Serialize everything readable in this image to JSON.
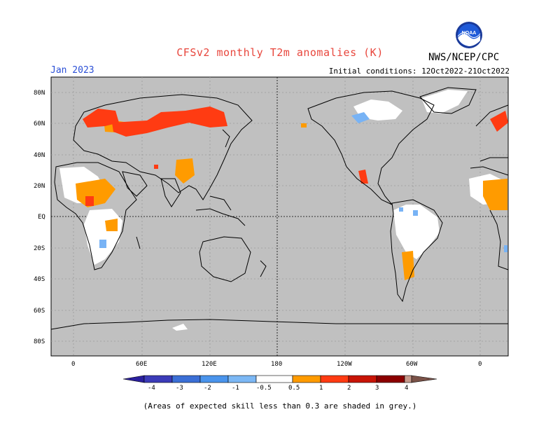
{
  "header": {
    "title": "CFSv2 monthly T2m anomalies (K)",
    "lead_month": "Jan 2023",
    "initial_conditions": "Initial conditions: 12Oct2022-21Oct2022",
    "org": "NWS/NCEP/CPC",
    "logo_text": "NOAA"
  },
  "map": {
    "lat_labels": [
      "80N",
      "60N",
      "40N",
      "20N",
      "EQ",
      "20S",
      "40S",
      "60S",
      "80S"
    ],
    "lon_labels": [
      "0",
      "60E",
      "120E",
      "180",
      "120W",
      "60W",
      "0"
    ]
  },
  "colorbar": {
    "ticks": [
      "-4",
      "-3",
      "-2",
      "-1",
      "-0.5",
      "0.5",
      "1",
      "2",
      "3",
      "4"
    ],
    "colors": [
      "#2a1f9e",
      "#3b55d0",
      "#4a88e8",
      "#78b3f5",
      "#ffffff",
      "#ff9b00",
      "#ff3b12",
      "#c81405",
      "#8b0000",
      "#c79a8c",
      "#7a5248"
    ]
  },
  "footnote": "(Areas of expected skill less than 0.3 are shaded in grey.)"
}
